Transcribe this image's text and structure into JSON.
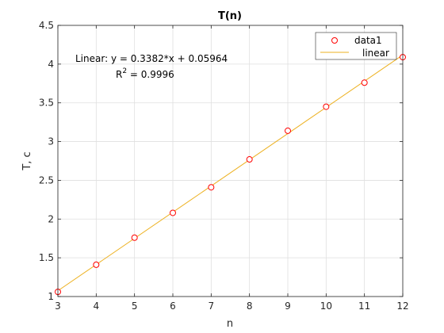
{
  "chart_data": {
    "type": "scatter",
    "title": "T(n)",
    "xlabel": "n",
    "ylabel": "T, c",
    "xlim": [
      3,
      12
    ],
    "ylim": [
      1,
      4.5
    ],
    "x_ticks": [
      3,
      4,
      5,
      6,
      7,
      8,
      9,
      10,
      11,
      12
    ],
    "y_ticks": [
      1,
      1.5,
      2,
      2.5,
      3,
      3.5,
      4,
      4.5
    ],
    "x_tick_labels": [
      "3",
      "4",
      "5",
      "6",
      "7",
      "8",
      "9",
      "10",
      "11",
      "12"
    ],
    "y_tick_labels": [
      "1",
      "1.5",
      "2",
      "2.5",
      "3",
      "3.5",
      "4",
      "4.5"
    ],
    "grid": true,
    "legend_position": "top-right",
    "series": [
      {
        "name": "data1",
        "kind": "markers",
        "marker": "circle",
        "color": "#ff0000",
        "x": [
          3,
          4,
          5,
          6,
          7,
          8,
          9,
          10,
          11,
          12
        ],
        "y": [
          1.06,
          1.41,
          1.76,
          2.08,
          2.41,
          2.77,
          3.14,
          3.45,
          3.76,
          4.09
        ]
      },
      {
        "name": "linear",
        "kind": "line",
        "color": "#edb120",
        "slope": 0.3382,
        "intercept": 0.05964
      }
    ],
    "annotations": {
      "equation_prefix": "Linear:  y = 0.3382*x + 0.05964",
      "r2_label": "R",
      "r2_superscript": "2",
      "r2_value": " = 0.9996"
    }
  }
}
